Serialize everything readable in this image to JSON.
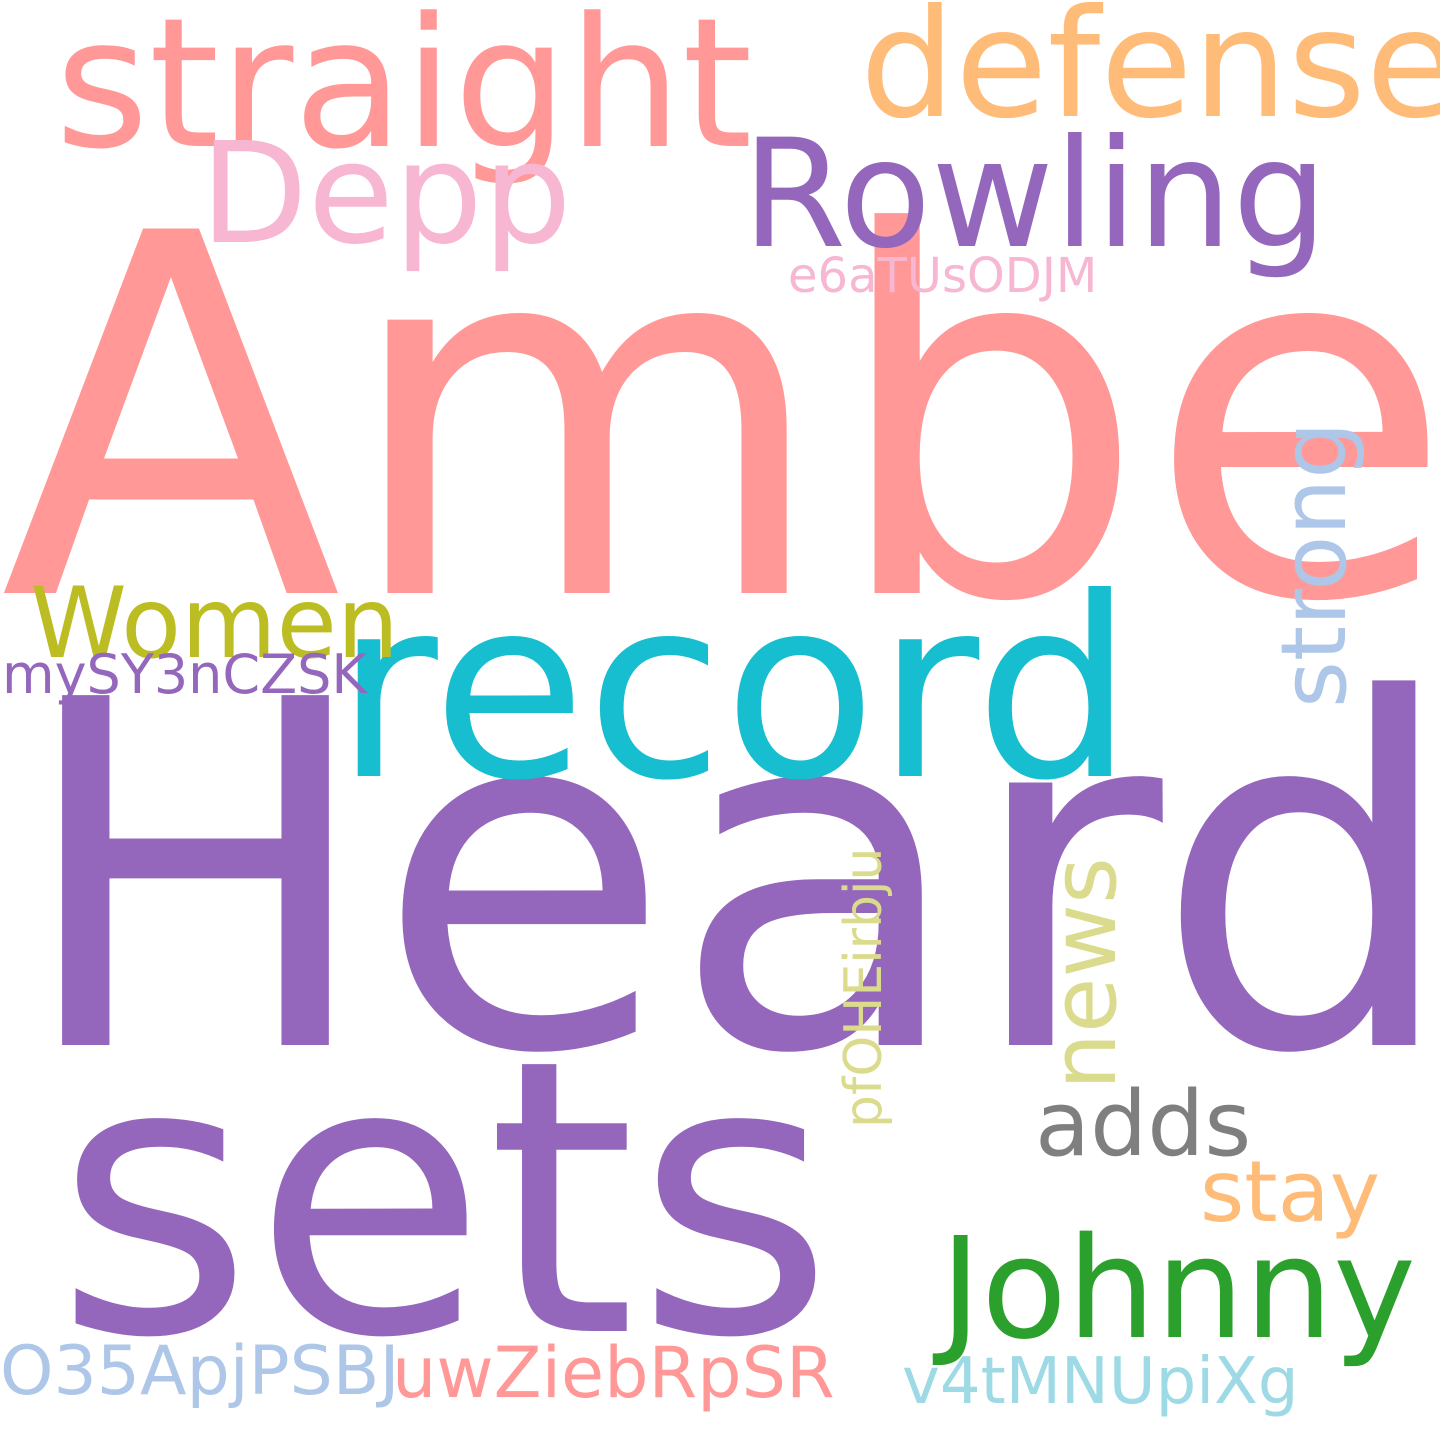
{
  "words": [
    {
      "text": "Amber",
      "color": "#FF9896"
    },
    {
      "text": "Heard",
      "color": "#9467BD"
    },
    {
      "text": "sets",
      "color": "#9467BD"
    },
    {
      "text": "record",
      "color": "#17BECF"
    },
    {
      "text": "straight",
      "color": "#FF9896"
    },
    {
      "text": "defense",
      "color": "#FFBB78"
    },
    {
      "text": "Rowling",
      "color": "#9467BD"
    },
    {
      "text": "Depp",
      "color": "#F7B6D2"
    },
    {
      "text": "e6aTUsODJM",
      "color": "#F7B6D2"
    },
    {
      "text": "strong",
      "color": "#AEC7E8"
    },
    {
      "text": "Women",
      "color": "#BCBD22"
    },
    {
      "text": "mySY3nCZSK",
      "color": "#9467BD"
    },
    {
      "text": "news",
      "color": "#DBDB8D"
    },
    {
      "text": "pfOHEirbju",
      "color": "#DBDB8D"
    },
    {
      "text": "adds",
      "color": "#7F7F7F"
    },
    {
      "text": "stay",
      "color": "#FFBB78"
    },
    {
      "text": "Johnny",
      "color": "#2CA02C"
    },
    {
      "text": "O35ApjPSBJ",
      "color": "#AEC7E8"
    },
    {
      "text": "uwZiebRpSR",
      "color": "#FF9896"
    },
    {
      "text": "v4tMNUpiXg",
      "color": "#9EDAE5"
    }
  ]
}
